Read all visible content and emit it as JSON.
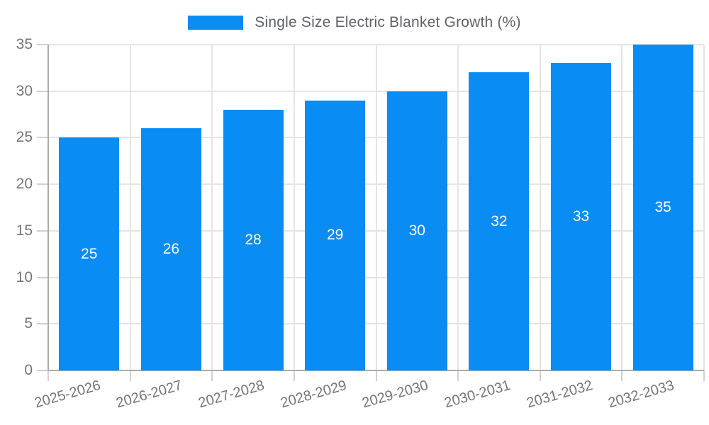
{
  "legend": {
    "label": "Single Size Electric Blanket Growth (%)"
  },
  "chart_data": {
    "type": "bar",
    "title": "Single Size Electric Blanket Growth (%)",
    "categories": [
      "2025-2026",
      "2026-2027",
      "2027-2028",
      "2028-2029",
      "2029-2030",
      "2030-2031",
      "2031-2032",
      "2032-2033"
    ],
    "values": [
      25,
      26,
      28,
      29,
      30,
      32,
      33,
      35
    ],
    "series": [
      {
        "name": "Single Size Electric Blanket Growth (%)",
        "values": [
          25,
          26,
          28,
          29,
          30,
          32,
          33,
          35
        ]
      }
    ],
    "xlabel": "",
    "ylabel": "",
    "ylim": [
      0,
      35
    ],
    "yticks": [
      0,
      5,
      10,
      15,
      20,
      25,
      30,
      35
    ],
    "grid": true,
    "legend_position": "top",
    "value_labels_inside_bars": true
  },
  "colors": {
    "bar": "#0a8cf5",
    "grid": "#e4e4e4",
    "axis": "#ababab",
    "tick": "#d0d0d0",
    "axis_label": "#757575",
    "legend_text": "#5f6368",
    "value_label": "#ffffff",
    "background": "#ffffff"
  }
}
